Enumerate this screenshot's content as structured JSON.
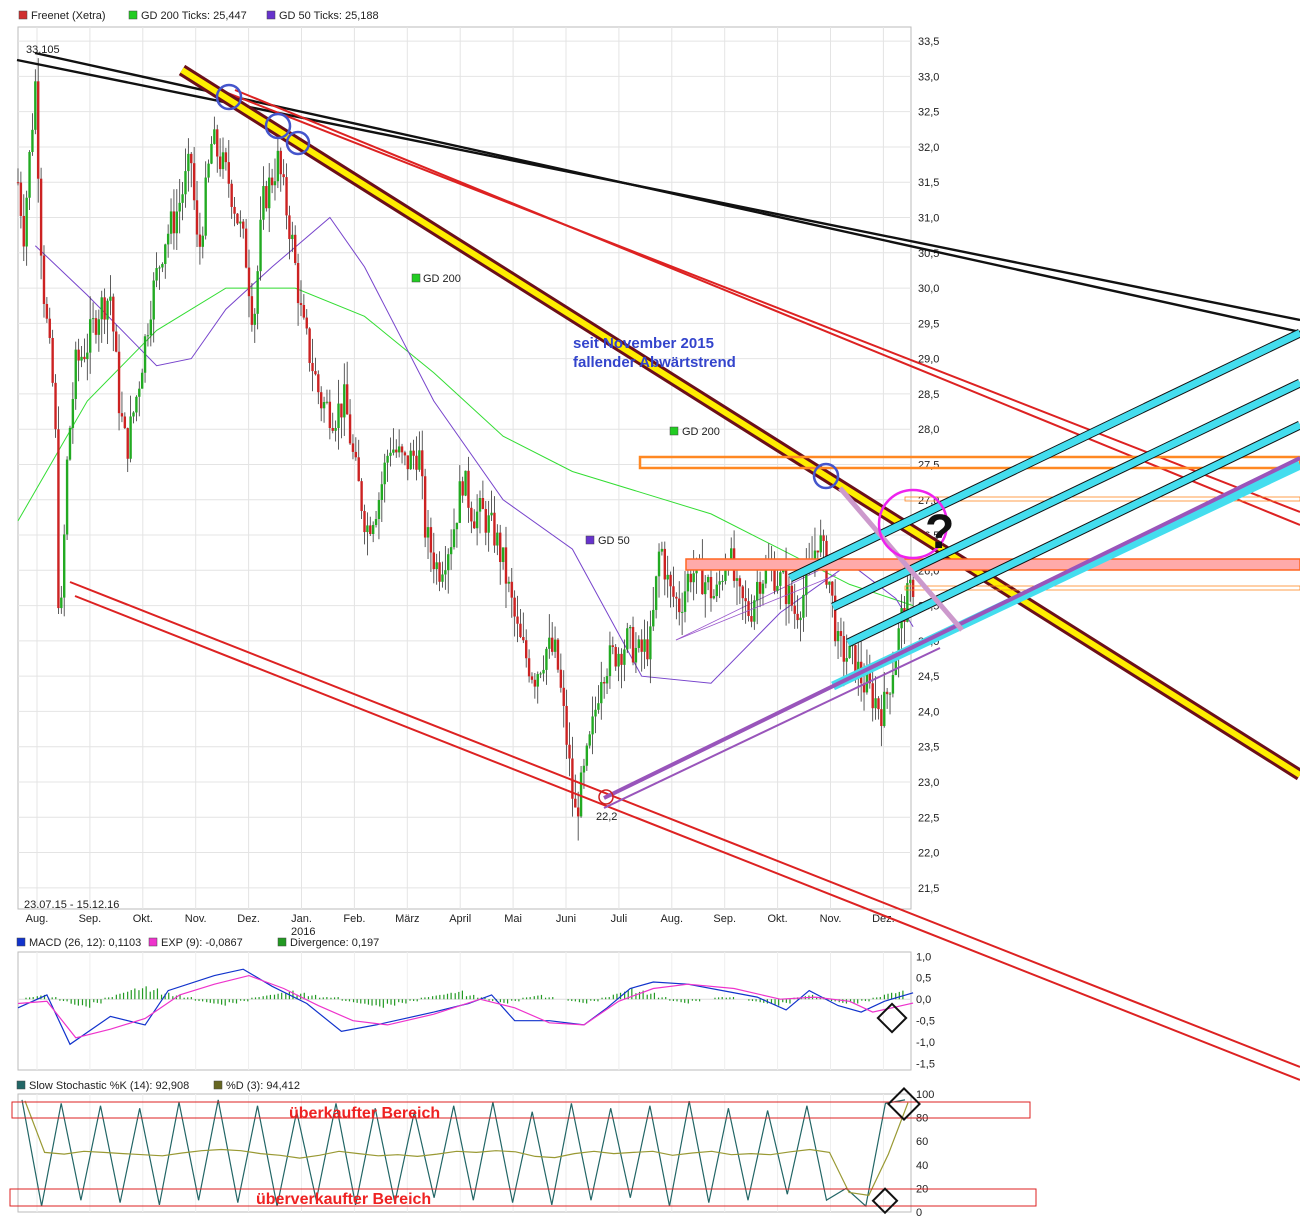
{
  "chart_data": [
    {
      "type": "candlestick",
      "legend": [
        {
          "name": "Freenet (Xetra)",
          "color": "#d03030"
        },
        {
          "name": "GD 200 Ticks: 25,447",
          "color": "#22cc22"
        },
        {
          "name": "GD 50 Ticks: 25,188",
          "color": "#6633cc"
        }
      ],
      "date_range": "23.07.15 - 15.12.16",
      "x_labels": [
        "Aug.",
        "Sep.",
        "Okt.",
        "Nov.",
        "Dez.",
        "Jan.",
        "Feb.",
        "März",
        "April",
        "Mai",
        "Juni",
        "Juli",
        "Aug.",
        "Sep.",
        "Okt.",
        "Nov.",
        "Dez."
      ],
      "year_label": "2016",
      "y_ticks": [
        "21,5",
        "22,0",
        "22,5",
        "23,0",
        "23,5",
        "24,0",
        "24,5",
        "25,0",
        "25,5",
        "26,0",
        "26,5",
        "27,0",
        "27,5",
        "28,0",
        "28,5",
        "29,0",
        "29,5",
        "30,0",
        "30,5",
        "31,0",
        "31,5",
        "32,0",
        "32,5",
        "33,0",
        "33,5"
      ],
      "ylim": [
        21.2,
        33.7
      ],
      "max_label": "33,105",
      "min_label": "22,2",
      "price_path": [
        [
          0,
          31.5
        ],
        [
          0.5,
          30.8
        ],
        [
          1.5,
          32.9
        ],
        [
          2.1,
          30.2
        ],
        [
          2.6,
          29.3
        ],
        [
          3.2,
          28.3
        ],
        [
          3.6,
          24.8
        ],
        [
          4.3,
          27.7
        ],
        [
          5.0,
          28.9
        ],
        [
          6.0,
          29.2
        ],
        [
          7.0,
          29.7
        ],
        [
          8.0,
          29.9
        ],
        [
          8.8,
          28.3
        ],
        [
          9.4,
          27.7
        ],
        [
          10.4,
          28.6
        ],
        [
          11.5,
          29.8
        ],
        [
          12.7,
          30.7
        ],
        [
          13.6,
          31.0
        ],
        [
          15.0,
          31.8
        ],
        [
          15.6,
          30.4
        ],
        [
          16.8,
          32.1
        ],
        [
          18.3,
          31.5
        ],
        [
          19.7,
          30.5
        ],
        [
          20.4,
          29.5
        ],
        [
          21.2,
          31.2
        ],
        [
          22.5,
          31.8
        ],
        [
          23.7,
          30.7
        ],
        [
          24.6,
          29.5
        ],
        [
          25.5,
          28.9
        ],
        [
          26.2,
          28.4
        ],
        [
          27.4,
          28.2
        ],
        [
          28.3,
          28.4
        ],
        [
          29.1,
          27.5
        ],
        [
          30.2,
          26.6
        ],
        [
          31.2,
          27.0
        ],
        [
          32.2,
          27.8
        ],
        [
          33.5,
          27.5
        ],
        [
          34.7,
          27.7
        ],
        [
          35.3,
          26.5
        ],
        [
          36.4,
          26.0
        ],
        [
          37.6,
          26.5
        ],
        [
          38.5,
          27.3
        ],
        [
          39.4,
          26.8
        ],
        [
          40.2,
          26.8
        ],
        [
          41.3,
          26.5
        ],
        [
          42.0,
          26.1
        ],
        [
          43.4,
          25.0
        ],
        [
          44.7,
          24.5
        ],
        [
          45.8,
          24.9
        ],
        [
          46.6,
          24.8
        ],
        [
          47.5,
          23.6
        ],
        [
          48.2,
          22.5
        ],
        [
          48.9,
          23.0
        ],
        [
          49.7,
          23.7
        ],
        [
          50.5,
          24.6
        ],
        [
          51.6,
          24.8
        ],
        [
          52.8,
          25.0
        ],
        [
          53.8,
          24.8
        ],
        [
          54.8,
          25.0
        ],
        [
          55.6,
          26.4
        ],
        [
          56.4,
          25.7
        ],
        [
          57.3,
          25.5
        ],
        [
          58.2,
          26.0
        ],
        [
          59.3,
          25.9
        ],
        [
          60.4,
          25.6
        ],
        [
          61.5,
          26.3
        ],
        [
          62.3,
          25.6
        ],
        [
          63.4,
          25.4
        ],
        [
          64.1,
          25.9
        ],
        [
          65.2,
          26.0
        ],
        [
          66.3,
          25.8
        ],
        [
          67.3,
          25.4
        ],
        [
          68.1,
          25.7
        ],
        [
          69.3,
          26.5
        ],
        [
          70.3,
          25.8
        ],
        [
          71.0,
          24.9
        ],
        [
          72.4,
          24.7
        ],
        [
          73.2,
          24.4
        ],
        [
          74.1,
          24.2
        ],
        [
          74.9,
          24.0
        ],
        [
          75.7,
          24.6
        ],
        [
          76.6,
          25.4
        ],
        [
          77.5,
          25.8
        ]
      ],
      "gd200_path": [
        [
          0,
          26.7
        ],
        [
          6.0,
          28.4
        ],
        [
          12.0,
          29.4
        ],
        [
          18.0,
          30.0
        ],
        [
          24.0,
          30.0
        ],
        [
          30.0,
          29.6
        ],
        [
          36.0,
          28.8
        ],
        [
          42.0,
          27.9
        ],
        [
          48.0,
          27.4
        ],
        [
          54.0,
          27.1
        ],
        [
          60.0,
          26.8
        ],
        [
          66.0,
          26.3
        ],
        [
          72.0,
          25.8
        ],
        [
          77.5,
          25.5
        ]
      ],
      "gd50_path": [
        [
          1.5,
          30.6
        ],
        [
          6.0,
          29.9
        ],
        [
          12.0,
          28.9
        ],
        [
          15.0,
          29.0
        ],
        [
          18.0,
          29.7
        ],
        [
          22.0,
          30.3
        ],
        [
          27.0,
          31.0
        ],
        [
          30.0,
          30.3
        ],
        [
          36.0,
          28.4
        ],
        [
          42.0,
          27.0
        ],
        [
          48.0,
          26.3
        ],
        [
          54.0,
          24.5
        ],
        [
          60.0,
          24.4
        ],
        [
          66.0,
          25.4
        ],
        [
          72.0,
          26.1
        ],
        [
          76.0,
          25.6
        ],
        [
          77.5,
          25.2
        ]
      ],
      "annotations": [
        {
          "text": "GD 200",
          "color": "#22cc22"
        },
        {
          "text": "GD 200",
          "color": "#22cc22"
        },
        {
          "text": "GD 50",
          "color": "#6633cc"
        }
      ],
      "trend_label": [
        "seit November 2015",
        "fallender Abwärtstrend"
      ],
      "question_mark": "?"
    },
    {
      "type": "macd",
      "legend": [
        {
          "name": "MACD (26, 12): 0,1103",
          "color": "#1133cc"
        },
        {
          "name": "EXP (9): -0,0867",
          "color": "#ee33cc"
        },
        {
          "name": "Divergence: 0,197",
          "color": "#229922"
        }
      ],
      "y_ticks": [
        "1,0",
        "0,5",
        "0,0",
        "-0,5",
        "-1,0",
        "-1,5"
      ],
      "ylim": [
        -1.65,
        1.1
      ],
      "macd_path": [
        [
          0,
          -0.2
        ],
        [
          2.5,
          0.1
        ],
        [
          4.5,
          -1.05
        ],
        [
          8.0,
          -0.4
        ],
        [
          11.0,
          -0.6
        ],
        [
          13.0,
          0.2
        ],
        [
          17.0,
          0.55
        ],
        [
          19.5,
          0.7
        ],
        [
          22.0,
          0.3
        ],
        [
          25.0,
          -0.1
        ],
        [
          28.0,
          -0.75
        ],
        [
          31.0,
          -0.6
        ],
        [
          36.0,
          -0.3
        ],
        [
          39.0,
          -0.1
        ],
        [
          41.0,
          0.1
        ],
        [
          43.0,
          -0.5
        ],
        [
          46.0,
          -0.5
        ],
        [
          49.0,
          -0.6
        ],
        [
          51.0,
          -0.2
        ],
        [
          53.0,
          0.25
        ],
        [
          55.0,
          0.4
        ],
        [
          58.0,
          0.35
        ],
        [
          61.0,
          0.2
        ],
        [
          64.0,
          0.05
        ],
        [
          66.5,
          -0.25
        ],
        [
          68.5,
          0.2
        ],
        [
          71.0,
          -0.15
        ],
        [
          73.0,
          -0.3
        ],
        [
          75.0,
          -0.05
        ],
        [
          77.5,
          0.15
        ]
      ],
      "exp_path": [
        [
          0,
          -0.1
        ],
        [
          2.5,
          -0.05
        ],
        [
          5.0,
          -0.9
        ],
        [
          8.0,
          -0.7
        ],
        [
          11.0,
          -0.45
        ],
        [
          14.0,
          0.1
        ],
        [
          17.0,
          0.35
        ],
        [
          20.0,
          0.55
        ],
        [
          23.0,
          0.25
        ],
        [
          26.0,
          -0.15
        ],
        [
          29.0,
          -0.5
        ],
        [
          32.0,
          -0.6
        ],
        [
          36.0,
          -0.35
        ],
        [
          40.0,
          0.0
        ],
        [
          43.0,
          -0.2
        ],
        [
          46.0,
          -0.55
        ],
        [
          49.0,
          -0.6
        ],
        [
          52.0,
          -0.05
        ],
        [
          55.0,
          0.25
        ],
        [
          58.0,
          0.35
        ],
        [
          62.0,
          0.25
        ],
        [
          66.0,
          0.0
        ],
        [
          69.0,
          0.05
        ],
        [
          72.0,
          -0.05
        ],
        [
          74.0,
          -0.3
        ],
        [
          77.5,
          -0.09
        ]
      ],
      "divergence": [
        0.05,
        0.1,
        0.05,
        -0.05,
        -0.15,
        -0.2,
        -0.1,
        0.05,
        0.15,
        0.25,
        0.3,
        0.25,
        0.15,
        0.1,
        0.05,
        -0.05,
        -0.1,
        -0.15,
        -0.1,
        -0.05,
        0.05,
        0.1,
        0.15,
        0.2,
        0.15,
        0.1,
        0.05,
        0.05,
        -0.05,
        -0.1,
        -0.15,
        -0.2,
        -0.15,
        -0.1,
        -0.05,
        0.05,
        0.1,
        0.15,
        0.2,
        0.1,
        0.05,
        -0.05,
        -0.1,
        -0.05,
        0.05,
        0.1,
        0.05,
        0.0,
        -0.05,
        -0.1,
        -0.05,
        0.05,
        0.15,
        0.25,
        0.2,
        0.15,
        0.05,
        -0.05,
        -0.1,
        -0.05,
        0.0,
        0.05,
        0.05,
        0.0,
        -0.05,
        -0.1,
        -0.15,
        -0.1,
        0.05,
        0.1,
        0.05,
        -0.05,
        -0.1,
        -0.1,
        -0.05,
        0.05,
        0.15,
        0.2
      ]
    },
    {
      "type": "stochastic",
      "legend": [
        {
          "name": "Slow Stochastic %K (14): 92,908",
          "color": "#226666"
        },
        {
          "name": "%D (3): 94,412",
          "color": "#666622"
        }
      ],
      "y_ticks": [
        "100",
        "80",
        "60",
        "40",
        "20",
        "0"
      ],
      "ylim": [
        0,
        100
      ],
      "k_peaks": [
        95,
        5,
        92,
        10,
        90,
        8,
        88,
        6,
        93,
        10,
        95,
        8,
        90,
        5,
        85,
        10,
        92,
        6,
        88,
        8,
        85,
        12,
        90,
        10,
        93,
        8,
        85,
        6,
        92,
        10,
        88,
        12,
        90,
        5,
        94,
        8,
        88,
        10,
        86,
        15,
        90,
        10,
        20,
        5,
        92,
        95
      ],
      "overbought_label": "überkaufter Bereich",
      "oversold_label": "überverkaufter Bereich"
    }
  ]
}
